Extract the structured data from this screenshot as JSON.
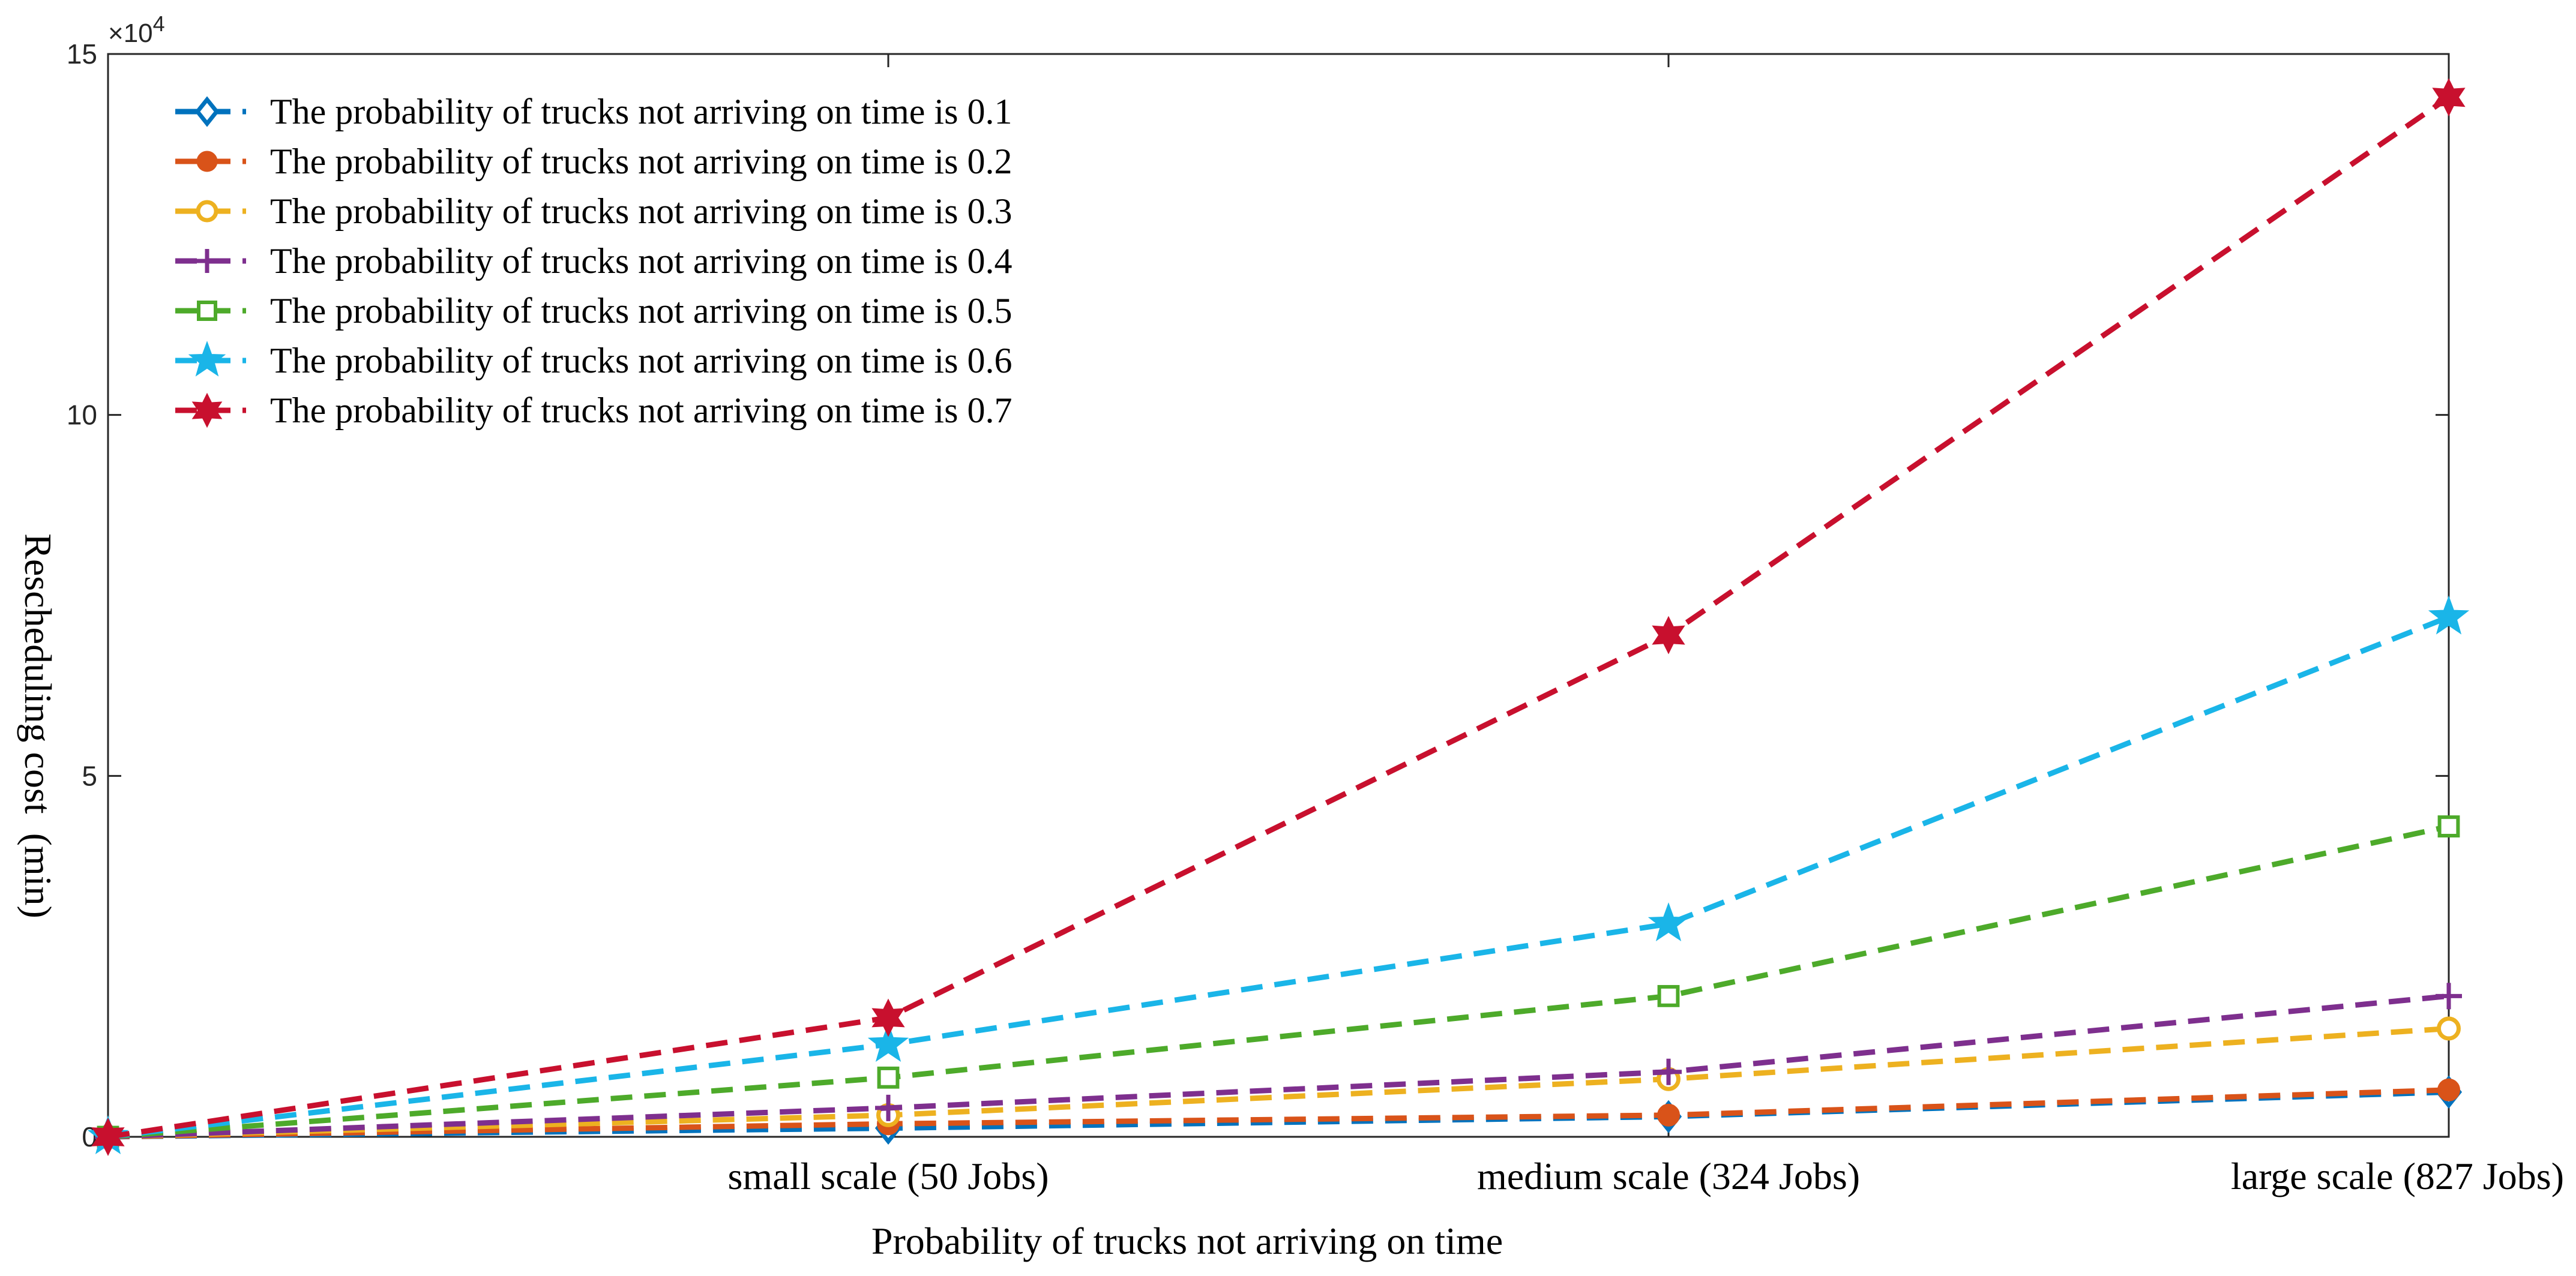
{
  "chart_data": {
    "type": "line",
    "title": "",
    "xlabel": "Probability of trucks not arriving on time",
    "ylabel": "Rescheduling cost  (min)",
    "categories": [
      "",
      "small scale (50 Jobs)",
      "medium scale (324 Jobs)",
      "large scale (827 Jobs)"
    ],
    "y_multiplier": "×10",
    "y_multiplier_exp": "4",
    "ylim": [
      0,
      15
    ],
    "yticks": [
      0,
      5,
      10,
      15
    ],
    "grid": false,
    "legend_position": "top-left",
    "series": [
      {
        "name": "The probability of trucks not arriving on time is 0.1",
        "color": "#0072BD",
        "marker": "diamond",
        "values": [
          0,
          0.12,
          0.28,
          0.62
        ]
      },
      {
        "name": "The probability of trucks not arriving on time is 0.2",
        "color": "#D95319",
        "marker": "circle-filled",
        "values": [
          0,
          0.18,
          0.3,
          0.65
        ]
      },
      {
        "name": "The probability of trucks not arriving on time is 0.3",
        "color": "#EDB120",
        "marker": "circle",
        "values": [
          0,
          0.3,
          0.8,
          1.5
        ]
      },
      {
        "name": "The probability of trucks not arriving on time is 0.4",
        "color": "#7E2F8E",
        "marker": "plus",
        "values": [
          0,
          0.4,
          0.9,
          1.95
        ]
      },
      {
        "name": "The probability of trucks not arriving on time is 0.5",
        "color": "#4DAA2A",
        "marker": "square",
        "values": [
          0,
          0.82,
          1.95,
          4.3
        ]
      },
      {
        "name": "The probability of trucks not arriving on time is 0.6",
        "color": "#1AB5E8",
        "marker": "pentagram",
        "values": [
          0,
          1.28,
          2.95,
          7.2
        ]
      },
      {
        "name": "The probability of trucks not arriving on time is 0.7",
        "color": "#C8102E",
        "marker": "hexagram",
        "values": [
          0,
          1.65,
          6.95,
          14.4
        ]
      }
    ]
  }
}
